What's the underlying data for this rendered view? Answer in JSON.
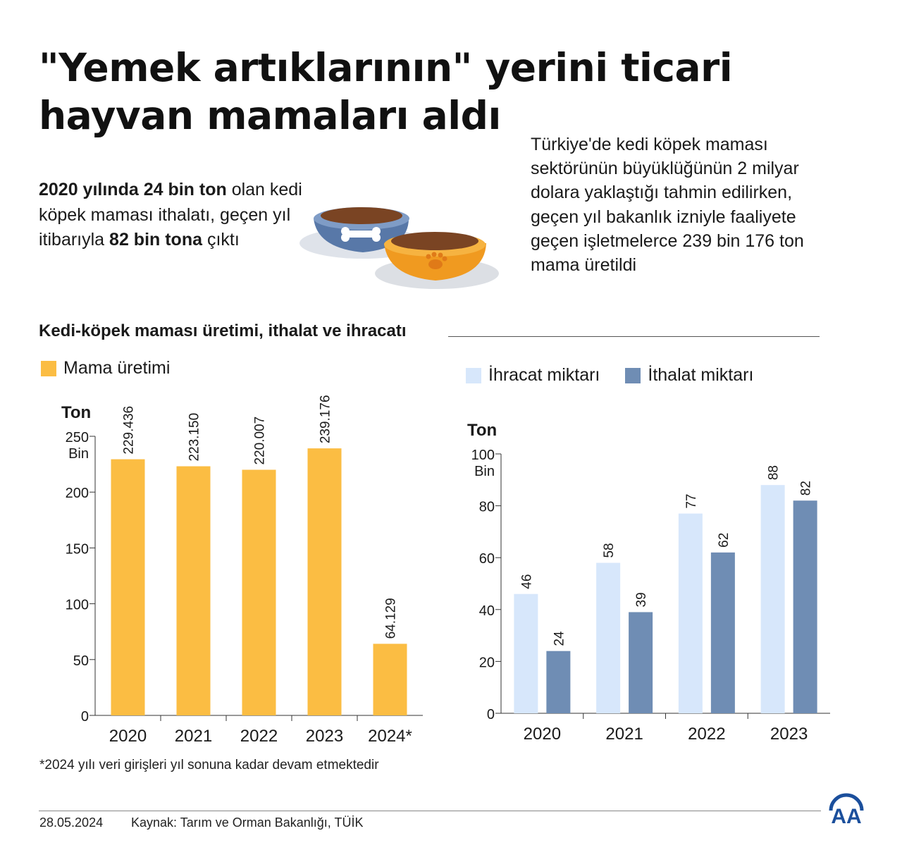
{
  "title_line1": "\"Yemek artıklarının\" yerini ticari",
  "title_line2": "hayvan mamaları aldı",
  "lead": {
    "b1": "2020 yılında 24 bin ton",
    "t1": " olan kedi köpek maması ithalatı, geçen yıl itibarıyla ",
    "b2": "82 bin tona",
    "t2": " çıktı"
  },
  "side_text": "Türkiye'de kedi köpek maması sektörünün büyüklüğünün 2 milyar dolara yaklaştığı tahmin edilirken, geçen yıl bakanlık izniyle faaliyete geçen işletmelerce 239 bin 176 ton mama üretildi",
  "subtitle": "Kedi-köpek maması üretimi, ithalat ve ihracatı",
  "footnote": "*2024 yılı veri girişleri yıl sonuna kadar devam etmektedir",
  "date": "28.05.2024",
  "source": "Kaynak: Tarım ve Orman Bakanlığı, TÜİK",
  "logo_text": "AA",
  "chart_data": [
    {
      "type": "bar",
      "legend": "Mama üretimi",
      "ylabel": "Ton",
      "yunit": "Bin",
      "ylim": [
        0,
        250
      ],
      "yticks": [
        0,
        50,
        100,
        150,
        200,
        250
      ],
      "categories": [
        "2020",
        "2021",
        "2022",
        "2023",
        "2024*"
      ],
      "series": [
        {
          "name": "Mama üretimi",
          "color": "#fbbd43",
          "values": [
            229.436,
            223.15,
            220.007,
            239.176,
            64.129
          ],
          "labels": [
            "229.436",
            "223.150",
            "220.007",
            "239.176",
            "64.129"
          ]
        }
      ]
    },
    {
      "type": "bar",
      "ylabel": "Ton",
      "yunit": "Bin",
      "ylim": [
        0,
        100
      ],
      "yticks": [
        0,
        20,
        40,
        60,
        80,
        100
      ],
      "categories": [
        "2020",
        "2021",
        "2022",
        "2023"
      ],
      "series": [
        {
          "name": "İhracat miktarı",
          "color": "#d7e7fb",
          "values": [
            46,
            58,
            77,
            88
          ]
        },
        {
          "name": "İthalat miktarı",
          "color": "#6f8db4",
          "values": [
            24,
            39,
            62,
            82
          ]
        }
      ]
    }
  ]
}
